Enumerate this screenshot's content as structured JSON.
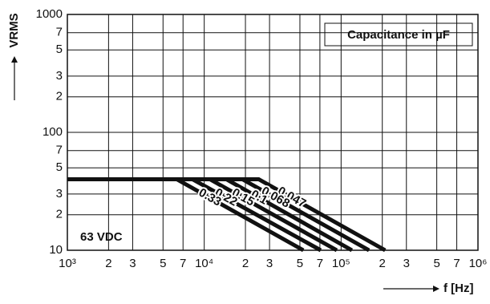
{
  "chart_data": {
    "type": "line",
    "log_x": true,
    "log_y": true,
    "grid": true,
    "x_label": "f [Hz]",
    "y_label": "VRMS",
    "annotations": [
      "Capacitance in µF",
      "63 VDC"
    ],
    "xlim": [
      1000,
      1000000
    ],
    "ylim": [
      10,
      1000
    ],
    "xticks": [
      {
        "value": 1000,
        "label": "10³"
      },
      {
        "value": 2000,
        "label": "2"
      },
      {
        "value": 3000,
        "label": "3"
      },
      {
        "value": 5000,
        "label": "5"
      },
      {
        "value": 7000,
        "label": "7"
      },
      {
        "value": 10000,
        "label": "10⁴"
      },
      {
        "value": 20000,
        "label": "2"
      },
      {
        "value": 30000,
        "label": "3"
      },
      {
        "value": 50000,
        "label": "5"
      },
      {
        "value": 70000,
        "label": "7"
      },
      {
        "value": 100000,
        "label": "10⁵"
      },
      {
        "value": 200000,
        "label": "2"
      },
      {
        "value": 300000,
        "label": "3"
      },
      {
        "value": 500000,
        "label": "5"
      },
      {
        "value": 700000,
        "label": "7"
      },
      {
        "value": 1000000,
        "label": "10⁶"
      }
    ],
    "yticks": [
      10,
      {
        "value": 20,
        "label": "2"
      },
      {
        "value": 30,
        "label": "3"
      },
      {
        "value": 50,
        "label": "5"
      },
      {
        "value": 70,
        "label": "7"
      },
      100,
      {
        "value": 200,
        "label": "2"
      },
      {
        "value": 300,
        "label": "3"
      },
      {
        "value": 500,
        "label": "5"
      },
      {
        "value": 700,
        "label": "7"
      },
      1000
    ],
    "series": [
      {
        "name": "0.047",
        "color": "#111111",
        "x": [
          1000,
          25000,
          210000
        ],
        "values": [
          40,
          40,
          10
        ]
      },
      {
        "name": "0.068",
        "color": "#111111",
        "x": [
          1000,
          19000,
          160000
        ],
        "values": [
          40,
          40,
          10
        ]
      },
      {
        "name": "0.1",
        "color": "#111111",
        "x": [
          1000,
          14500,
          120000
        ],
        "values": [
          40,
          40,
          10
        ]
      },
      {
        "name": "0.15",
        "color": "#111111",
        "x": [
          1000,
          11000,
          93000
        ],
        "values": [
          40,
          40,
          10
        ]
      },
      {
        "name": "0.22",
        "color": "#111111",
        "x": [
          1000,
          8200,
          71000
        ],
        "values": [
          40,
          40,
          10
        ]
      },
      {
        "name": "0.33",
        "color": "#111111",
        "x": [
          1000,
          6300,
          53000
        ],
        "values": [
          40,
          40,
          10
        ]
      }
    ]
  }
}
